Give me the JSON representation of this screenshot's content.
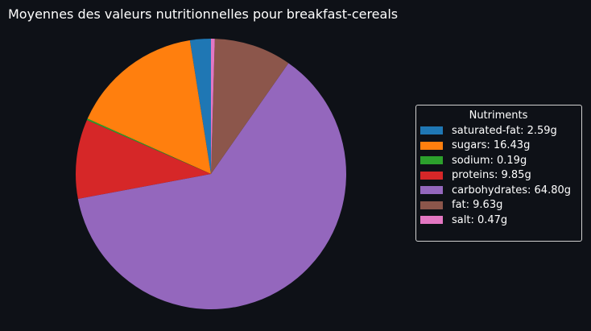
{
  "title": "Moyennes des valeurs nutritionnelles pour breakfast-cereals",
  "chart_data": {
    "type": "pie",
    "title": "Moyennes des valeurs nutritionnelles pour breakfast-cereals",
    "legend_title": "Nutriments",
    "legend_position": "right",
    "start_angle_deg": 90,
    "direction": "counterclockwise",
    "slices": [
      {
        "label": "saturated-fat",
        "value": 2.59,
        "unit": "g",
        "legend_text": "saturated-fat: 2.59g",
        "color": "#1f77b4"
      },
      {
        "label": "sugars",
        "value": 16.43,
        "unit": "g",
        "legend_text": "sugars: 16.43g",
        "color": "#ff7f0e"
      },
      {
        "label": "sodium",
        "value": 0.19,
        "unit": "g",
        "legend_text": "sodium: 0.19g",
        "color": "#2ca02c"
      },
      {
        "label": "proteins",
        "value": 9.85,
        "unit": "g",
        "legend_text": "proteins: 9.85g",
        "color": "#d62728"
      },
      {
        "label": "carbohydrates",
        "value": 64.8,
        "unit": "g",
        "legend_text": "carbohydrates: 64.80g",
        "color": "#9467bd"
      },
      {
        "label": "fat",
        "value": 9.63,
        "unit": "g",
        "legend_text": "fat: 9.63g",
        "color": "#8c564b"
      },
      {
        "label": "salt",
        "value": 0.47,
        "unit": "g",
        "legend_text": "salt: 0.47g",
        "color": "#e377c2"
      }
    ]
  }
}
